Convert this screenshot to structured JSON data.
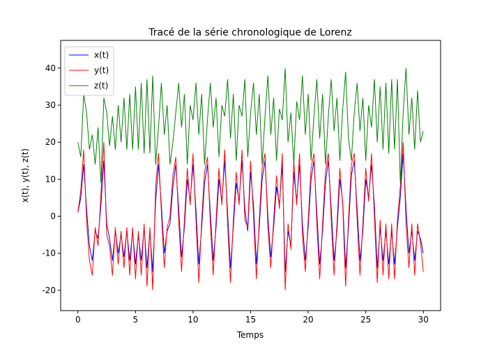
{
  "chart_data": {
    "type": "line",
    "title": "Tracé de la série chronologique de Lorenz",
    "x_label": "Temps",
    "y_label": "x(t), y(t), z(t)",
    "x": [
      0,
      0.25,
      0.5,
      0.75,
      1,
      1.25,
      1.5,
      1.75,
      2,
      2.25,
      2.5,
      2.75,
      3,
      3.25,
      3.5,
      3.75,
      4,
      4.25,
      4.5,
      4.75,
      5,
      5.25,
      5.5,
      5.75,
      6,
      6.25,
      6.5,
      6.75,
      7,
      7.25,
      7.5,
      7.75,
      8,
      8.25,
      8.5,
      8.75,
      9,
      9.25,
      9.5,
      9.75,
      10,
      10.25,
      10.5,
      10.75,
      11,
      11.25,
      11.5,
      11.75,
      12,
      12.25,
      12.5,
      12.75,
      13,
      13.25,
      13.5,
      13.75,
      14,
      14.25,
      14.5,
      14.75,
      15,
      15.25,
      15.5,
      15.75,
      16,
      16.25,
      16.5,
      16.75,
      17,
      17.25,
      17.5,
      17.75,
      18,
      18.25,
      18.5,
      18.75,
      19,
      19.25,
      19.5,
      19.75,
      20,
      20.25,
      20.5,
      20.75,
      21,
      21.25,
      21.5,
      21.75,
      22,
      22.25,
      22.5,
      22.75,
      23,
      23.25,
      23.5,
      23.75,
      24,
      24.25,
      24.5,
      24.75,
      25,
      25.25,
      25.5,
      25.75,
      26,
      26.25,
      26.5,
      26.75,
      27,
      27.25,
      27.5,
      27.75,
      28,
      28.25,
      28.5,
      28.75,
      29,
      29.25,
      29.5,
      29.75,
      30
    ],
    "series": [
      {
        "name": "x(t)",
        "color": "#0000ff",
        "values": [
          1,
          5,
          14,
          2,
          -8,
          -12,
          -4,
          -6,
          3,
          15,
          -2,
          -6,
          -12,
          -4,
          -10,
          -5,
          -11,
          -4,
          -12,
          -4,
          -13,
          -5,
          -12,
          -3,
          -14,
          -4,
          -15,
          4,
          14,
          3,
          -10,
          -4,
          -2,
          8,
          14,
          2,
          -11,
          -3,
          10,
          4,
          14,
          2,
          -13,
          -3,
          9,
          14,
          1,
          -12,
          -3,
          10,
          4,
          15,
          1,
          -14,
          -3,
          9,
          4,
          15,
          2,
          -4,
          12,
          3,
          -13,
          -3,
          10,
          15,
          0,
          -11,
          -3,
          8,
          3,
          14,
          -15,
          -4,
          -8,
          12,
          4,
          14,
          -2,
          -12,
          -3,
          10,
          15,
          1,
          -13,
          -4,
          9,
          15,
          2,
          -12,
          -4,
          10,
          4,
          -14,
          -3,
          11,
          15,
          2,
          -12,
          -4,
          10,
          5,
          14,
          3,
          -14,
          -3,
          -12,
          -4,
          -13,
          -4,
          -13,
          -3,
          5,
          17,
          2,
          -10,
          -4,
          -12,
          -4,
          -6,
          -10
        ]
      },
      {
        "name": "y(t)",
        "color": "#ff0000",
        "values": [
          1,
          7,
          18,
          -1,
          -12,
          -16,
          -3,
          -8,
          6,
          20,
          -5,
          -8,
          -16,
          -3,
          -13,
          -4,
          -14,
          -3,
          -16,
          -3,
          -17,
          -4,
          -16,
          -2,
          -19,
          -3,
          -20,
          8,
          17,
          1,
          -14,
          -3,
          0,
          11,
          16,
          -1,
          -15,
          -1,
          13,
          3,
          17,
          -1,
          -18,
          -1,
          12,
          16,
          -2,
          -16,
          -1,
          13,
          3,
          18,
          -2,
          -18,
          -1,
          12,
          3,
          18,
          -1,
          -3,
          15,
          0,
          -17,
          -1,
          13,
          17,
          -3,
          -14,
          -1,
          11,
          2,
          17,
          -20,
          -2,
          -9,
          15,
          3,
          17,
          -5,
          -15,
          -1,
          13,
          17,
          -2,
          -17,
          -2,
          12,
          17,
          -1,
          -16,
          -2,
          13,
          3,
          -19,
          -1,
          14,
          17,
          -1,
          -16,
          -2,
          13,
          4,
          17,
          0,
          -18,
          -1,
          -16,
          -2,
          -17,
          -2,
          -17,
          -1,
          8,
          20,
          -2,
          -14,
          -2,
          -16,
          -2,
          -7,
          -15
        ]
      },
      {
        "name": "z(t)",
        "color": "#008000",
        "values": [
          20,
          16,
          33,
          28,
          18,
          22,
          14,
          24,
          9,
          32,
          28,
          19,
          27,
          18,
          30,
          20,
          32,
          18,
          33,
          18,
          35,
          18,
          36,
          17,
          37,
          17,
          38,
          14,
          24,
          36,
          22,
          30,
          14,
          20,
          28,
          36,
          24,
          33,
          14,
          30,
          26,
          36,
          22,
          33,
          14,
          26,
          36,
          24,
          32,
          16,
          30,
          27,
          37,
          21,
          33,
          15,
          30,
          27,
          37,
          16,
          28,
          36,
          22,
          33,
          14,
          27,
          38,
          22,
          32,
          15,
          29,
          26,
          40,
          20,
          28,
          14,
          31,
          26,
          38,
          22,
          33,
          15,
          27,
          37,
          21,
          33,
          14,
          27,
          37,
          23,
          32,
          15,
          29,
          39,
          21,
          15,
          28,
          36,
          23,
          32,
          15,
          30,
          24,
          37,
          20,
          35,
          18,
          36,
          17,
          37,
          18,
          37,
          9,
          28,
          40,
          22,
          32,
          18,
          34,
          20,
          23
        ]
      }
    ],
    "xlim": [
      -1.5,
      31.5
    ],
    "ylim": [
      -25.5,
      47.5
    ],
    "xticks": [
      0,
      5,
      10,
      15,
      20,
      25,
      30
    ],
    "yticks": [
      -20,
      -10,
      0,
      10,
      20,
      30,
      40
    ],
    "legend": "upper left"
  }
}
